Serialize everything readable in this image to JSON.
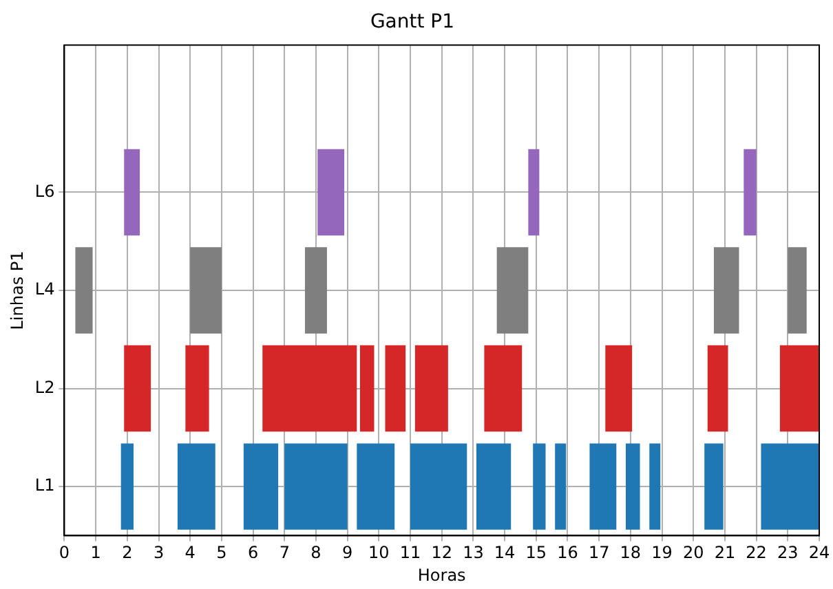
{
  "chart_data": {
    "type": "bar",
    "orientation": "horizontal",
    "title": "Gantt P1",
    "xlabel": "Horas",
    "ylabel": "Linhas P1",
    "categories": [
      null,
      "L6",
      "L4",
      "L2",
      "L1"
    ],
    "xlim": [
      0,
      24
    ],
    "xticks": [
      0,
      1,
      2,
      3,
      4,
      5,
      6,
      7,
      8,
      9,
      10,
      11,
      12,
      13,
      14,
      15,
      16,
      17,
      18,
      19,
      20,
      21,
      22,
      23,
      24
    ],
    "grid": true,
    "legend": false,
    "series": [
      {
        "values": [
          null,
          0.5,
          0.55,
          0.85,
          0.4
        ],
        "base": [
          null,
          1.9,
          0.35,
          1.9,
          1.8
        ],
        "colors": [
          "#1f77b4",
          "#9467bd",
          "#7f7f7f",
          "#d62728",
          "#1f77b4"
        ]
      },
      {
        "values": [
          null,
          0.85,
          1.0,
          0.75,
          1.2
        ],
        "base": [
          null,
          8.05,
          4.0,
          3.85,
          3.6
        ],
        "colors": [
          "#1f77b4",
          "#9467bd",
          "#7f7f7f",
          "#d62728",
          "#1f77b4"
        ]
      },
      {
        "values": [
          null,
          0.35,
          0.7,
          3.0,
          1.1
        ],
        "base": [
          null,
          14.75,
          7.65,
          6.3,
          5.7
        ],
        "colors": [
          "#1f77b4",
          "#9467bd",
          "#7f7f7f",
          "#d62728",
          "#1f77b4"
        ]
      },
      {
        "values": [
          null,
          0.4,
          1.0,
          0.45,
          2.0
        ],
        "base": [
          null,
          21.6,
          13.75,
          9.4,
          7.0
        ],
        "colors": [
          "#1f77b4",
          "#9467bd",
          "#7f7f7f",
          "#d62728",
          "#1f77b4"
        ]
      },
      {
        "values": [
          null,
          null,
          0.8,
          0.65,
          1.2
        ],
        "base": [
          null,
          null,
          20.65,
          10.2,
          9.3
        ],
        "colors": [
          "#1f77b4",
          "#9467bd",
          "#7f7f7f",
          "#d62728",
          "#1f77b4"
        ]
      },
      {
        "values": [
          null,
          null,
          0.6,
          1.05,
          1.8
        ],
        "base": [
          null,
          null,
          23.0,
          11.15,
          11.0
        ],
        "colors": [
          "#1f77b4",
          "#9467bd",
          "#7f7f7f",
          "#d62728",
          "#1f77b4"
        ]
      },
      {
        "values": [
          null,
          null,
          null,
          1.2,
          1.1
        ],
        "base": [
          null,
          null,
          null,
          13.35,
          13.1
        ],
        "colors": [
          "#1f77b4",
          "#9467bd",
          "#7f7f7f",
          "#d62728",
          "#1f77b4"
        ]
      },
      {
        "values": [
          null,
          null,
          null,
          0.85,
          0.4
        ],
        "base": [
          null,
          null,
          null,
          17.2,
          14.9
        ],
        "colors": [
          "#1f77b4",
          "#9467bd",
          "#7f7f7f",
          "#d62728",
          "#1f77b4"
        ]
      },
      {
        "values": [
          null,
          null,
          null,
          0.65,
          0.35
        ],
        "base": [
          null,
          null,
          null,
          20.45,
          15.6
        ],
        "colors": [
          "#1f77b4",
          "#9467bd",
          "#7f7f7f",
          "#d62728",
          "#1f77b4"
        ]
      },
      {
        "values": [
          null,
          null,
          null,
          1.25,
          0.85
        ],
        "base": [
          null,
          null,
          null,
          22.75,
          16.7
        ],
        "colors": [
          "#1f77b4",
          "#9467bd",
          "#7f7f7f",
          "#d62728",
          "#1f77b4"
        ]
      },
      {
        "values": [
          null,
          null,
          null,
          null,
          0.45
        ],
        "base": [
          null,
          null,
          null,
          null,
          17.85
        ],
        "colors": [
          "#1f77b4",
          "#9467bd",
          "#7f7f7f",
          "#d62728",
          "#1f77b4"
        ]
      },
      {
        "values": [
          null,
          null,
          null,
          null,
          0.35
        ],
        "base": [
          null,
          null,
          null,
          null,
          18.6
        ],
        "colors": [
          "#1f77b4",
          "#9467bd",
          "#7f7f7f",
          "#d62728",
          "#1f77b4"
        ]
      },
      {
        "values": [
          null,
          null,
          null,
          null,
          0.6
        ],
        "base": [
          null,
          null,
          null,
          null,
          20.35
        ],
        "colors": [
          "#1f77b4",
          "#9467bd",
          "#7f7f7f",
          "#d62728",
          "#1f77b4"
        ]
      },
      {
        "values": [
          null,
          null,
          null,
          null,
          1.85
        ],
        "base": [
          null,
          null,
          null,
          null,
          22.15
        ],
        "colors": [
          "#1f77b4",
          "#9467bd",
          "#7f7f7f",
          "#d62728",
          "#1f77b4"
        ]
      }
    ]
  }
}
